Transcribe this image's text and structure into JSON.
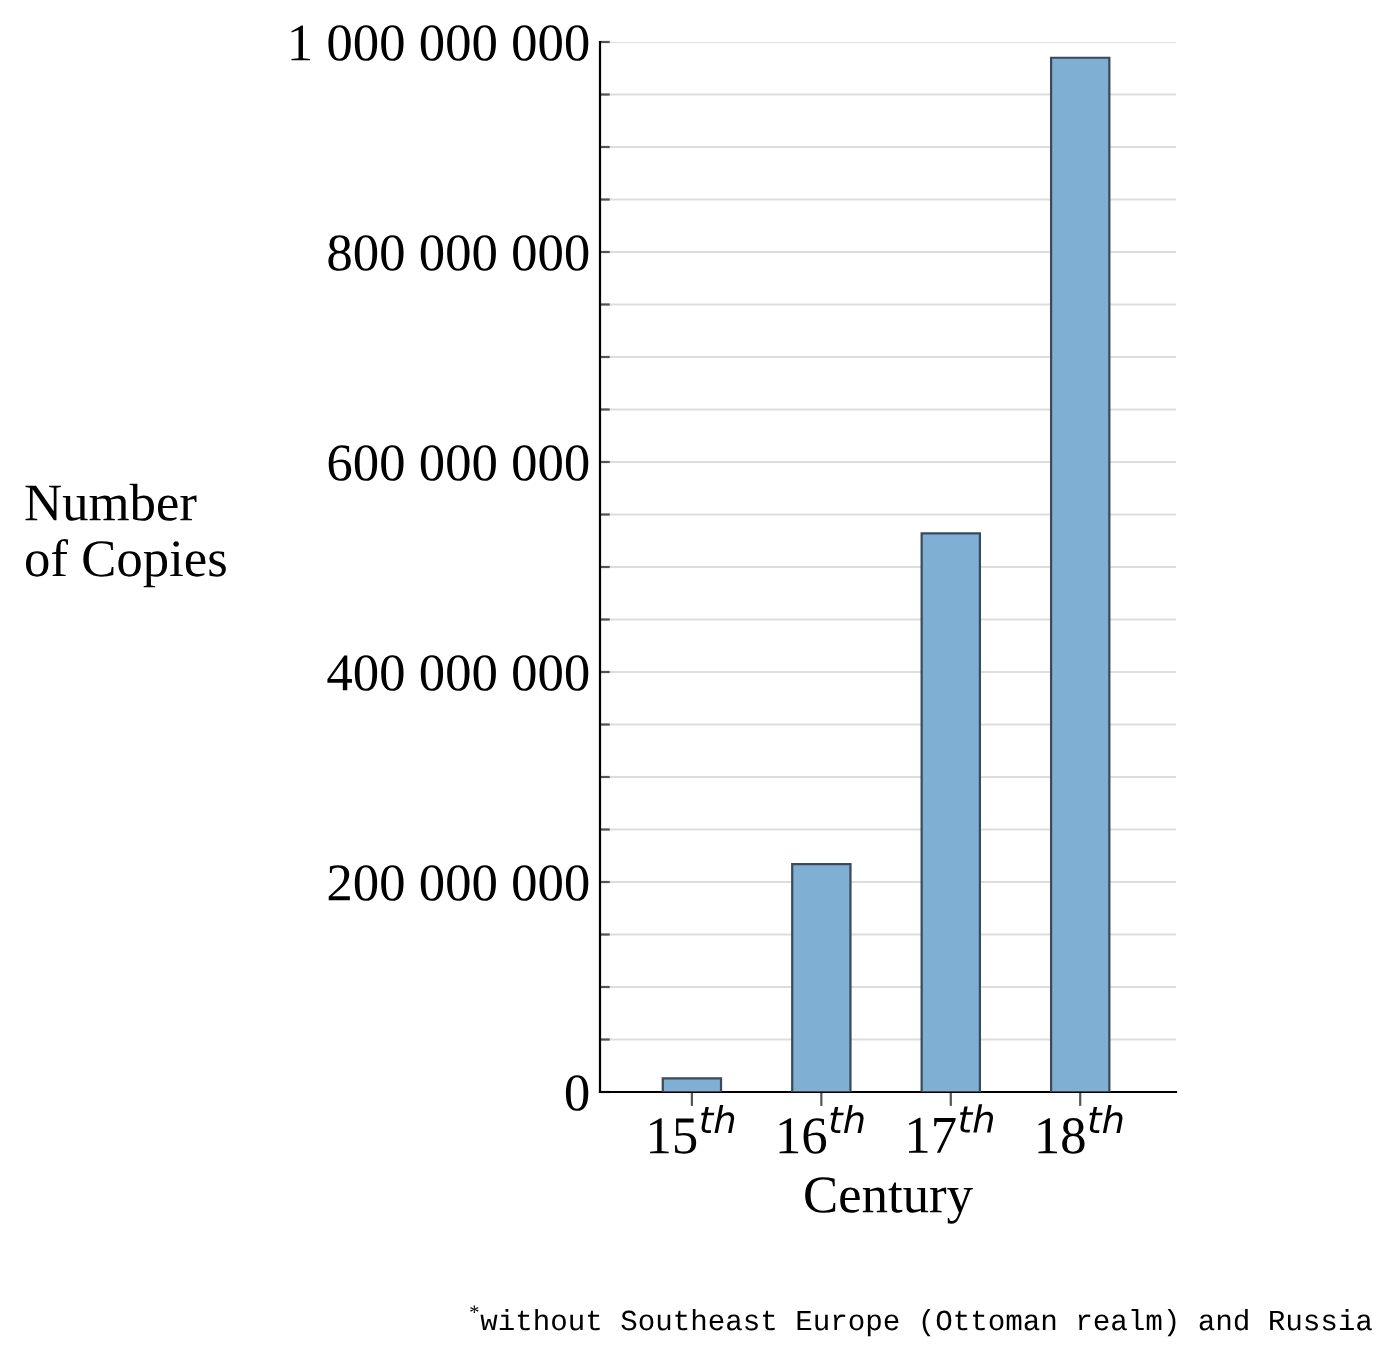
{
  "chart_data": {
    "type": "bar",
    "categories": [
      "15$^{th}$",
      "16$^{th}$",
      "17$^{th}$",
      "18$^{th}$"
    ],
    "values": [
      13000000,
      217000000,
      532000000,
      985000000
    ],
    "color": "#7fb0d4",
    "xlabel": "Century",
    "ylabel": "Number\nof Copies",
    "ylim": [
      0,
      1000000000
    ],
    "yticks": [
      {
        "value": 0,
        "label": "0"
      },
      {
        "value": 50000000,
        "label": null
      },
      {
        "value": 100000000,
        "label": null
      },
      {
        "value": 150000000,
        "label": null
      },
      {
        "value": 200000000,
        "label": "200 000 000"
      },
      {
        "value": 250000000,
        "label": null
      },
      {
        "value": 300000000,
        "label": null
      },
      {
        "value": 350000000,
        "label": null
      },
      {
        "value": 400000000,
        "label": "400 000 000"
      },
      {
        "value": 450000000,
        "label": null
      },
      {
        "value": 500000000,
        "label": null
      },
      {
        "value": 550000000,
        "label": null
      },
      {
        "value": 600000000,
        "label": "600 000 000"
      },
      {
        "value": 650000000,
        "label": null
      },
      {
        "value": 700000000,
        "label": null
      },
      {
        "value": 750000000,
        "label": null
      },
      {
        "value": 800000000,
        "label": "800 000 000"
      },
      {
        "value": 850000000,
        "label": null
      },
      {
        "value": 900000000,
        "label": null
      },
      {
        "value": 950000000,
        "label": null
      },
      {
        "value": 1000000000,
        "label": "1 000 000 000"
      }
    ],
    "grid": "y",
    "annotations": [
      "$^{*}$without Southeast Europe (Ottoman realm) and Russia"
    ]
  }
}
